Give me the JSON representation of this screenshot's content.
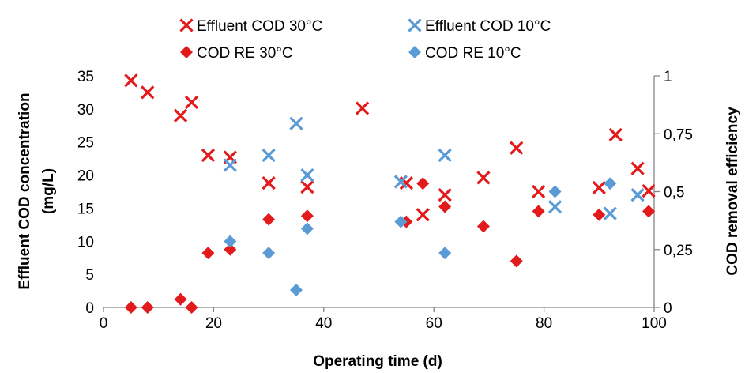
{
  "chart_data": {
    "type": "scatter",
    "xlabel": "Operating time (d)",
    "ylabel_left_lines": [
      "Effluent COD concentration",
      "(mg/L)"
    ],
    "ylabel_right": "COD removal efficiency",
    "xlim": [
      0,
      100
    ],
    "xticks": [
      0,
      20,
      40,
      60,
      80,
      100
    ],
    "ylim_left": [
      0,
      35
    ],
    "yticks_left": [
      0,
      5,
      10,
      15,
      20,
      25,
      30,
      35
    ],
    "ylim_right": [
      0,
      1
    ],
    "yticks_right": [
      {
        "value": 0,
        "label": "0"
      },
      {
        "value": 0.25,
        "label": "0,25"
      },
      {
        "value": 0.5,
        "label": "0,5"
      },
      {
        "value": 0.75,
        "label": "0,75"
      },
      {
        "value": 1,
        "label": "1"
      }
    ],
    "grid": false,
    "legend_position": "top",
    "series": [
      {
        "name": "Effluent COD 30°C",
        "marker": "x",
        "axis": "left",
        "color": "#e31a1c",
        "points": [
          [
            5,
            34.3
          ],
          [
            8,
            32.5
          ],
          [
            14,
            29
          ],
          [
            16,
            31
          ],
          [
            19,
            23
          ],
          [
            23,
            22.7
          ],
          [
            30,
            18.8
          ],
          [
            37,
            18.2
          ],
          [
            47,
            30.1
          ],
          [
            55,
            18.8
          ],
          [
            58,
            14
          ],
          [
            62,
            17
          ],
          [
            69,
            19.6
          ],
          [
            75,
            24.1
          ],
          [
            79,
            17.5
          ],
          [
            90,
            18.1
          ],
          [
            93,
            26.1
          ],
          [
            97,
            21
          ],
          [
            99,
            17.6
          ]
        ]
      },
      {
        "name": "Effluent COD 10°C",
        "marker": "x",
        "axis": "left",
        "color": "#5b9bd5",
        "points": [
          [
            23,
            21.5
          ],
          [
            30,
            23
          ],
          [
            35,
            27.8
          ],
          [
            37,
            20
          ],
          [
            54,
            19
          ],
          [
            62,
            23
          ],
          [
            82,
            15.2
          ],
          [
            92,
            14.2
          ],
          [
            97,
            17
          ]
        ]
      },
      {
        "name": "COD RE 30°C",
        "marker": "diamond",
        "axis": "right",
        "color": "#e31a1c",
        "points": [
          [
            5,
            0
          ],
          [
            8,
            0
          ],
          [
            14,
            0.035
          ],
          [
            16,
            0
          ],
          [
            19,
            0.235
          ],
          [
            23,
            0.25
          ],
          [
            30,
            0.38
          ],
          [
            37,
            0.395
          ],
          [
            55,
            0.37
          ],
          [
            58,
            0.535
          ],
          [
            62,
            0.435
          ],
          [
            69,
            0.35
          ],
          [
            75,
            0.2
          ],
          [
            79,
            0.415
          ],
          [
            90,
            0.4
          ],
          [
            99,
            0.415
          ]
        ]
      },
      {
        "name": "COD RE 10°C",
        "marker": "diamond",
        "axis": "right",
        "color": "#5b9bd5",
        "points": [
          [
            23,
            0.285
          ],
          [
            30,
            0.235
          ],
          [
            35,
            0.075
          ],
          [
            37,
            0.34
          ],
          [
            54,
            0.37
          ],
          [
            62,
            0.235
          ],
          [
            82,
            0.5
          ],
          [
            92,
            0.535
          ]
        ]
      }
    ]
  }
}
